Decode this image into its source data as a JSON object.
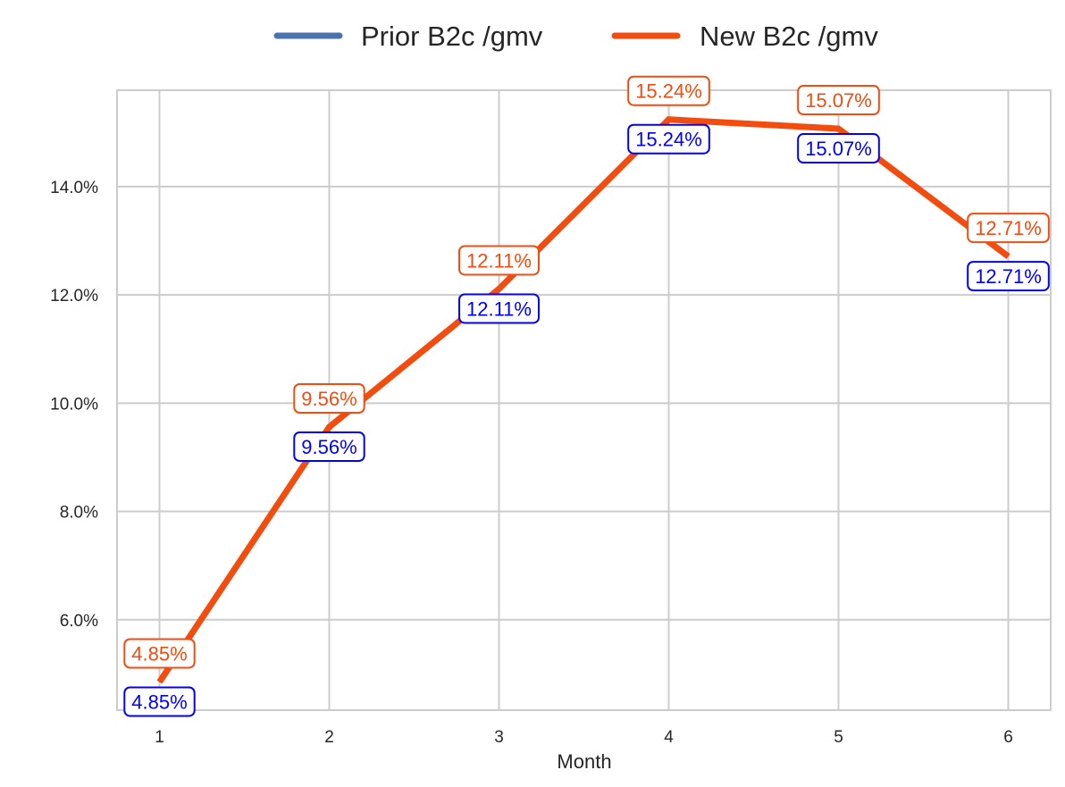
{
  "chart_data": {
    "type": "line",
    "title": "",
    "xlabel": "Month",
    "ylabel": "",
    "x": [
      1,
      2,
      3,
      4,
      5,
      6
    ],
    "xlim": [
      0.75,
      6.25
    ],
    "ylim": [
      4.33,
      15.78
    ],
    "yticks": [
      6.0,
      8.0,
      10.0,
      12.0,
      14.0
    ],
    "ytick_labels": [
      "6.0%",
      "8.0%",
      "10.0%",
      "12.0%",
      "14.0%"
    ],
    "xtick_labels": [
      "1",
      "2",
      "3",
      "4",
      "5",
      "6"
    ],
    "grid": true,
    "legend_position": "top-center, outside plot",
    "series": [
      {
        "name": "Prior B2c /gmv",
        "color": "#4c72b0",
        "label_color": "#0000ff",
        "values": [
          4.85,
          9.56,
          12.11,
          15.24,
          15.07,
          12.71
        ],
        "labels": [
          "4.85%",
          "9.56%",
          "12.11%",
          "15.24%",
          "15.07%",
          "12.71%"
        ]
      },
      {
        "name": "New B2c /gmv",
        "color": "#f24c0f",
        "label_color": "#f24c0f",
        "values": [
          4.85,
          9.56,
          12.11,
          15.24,
          15.07,
          12.71
        ],
        "labels": [
          "4.85%",
          "9.56%",
          "12.11%",
          "15.24%",
          "15.07%",
          "12.71%"
        ]
      }
    ]
  }
}
